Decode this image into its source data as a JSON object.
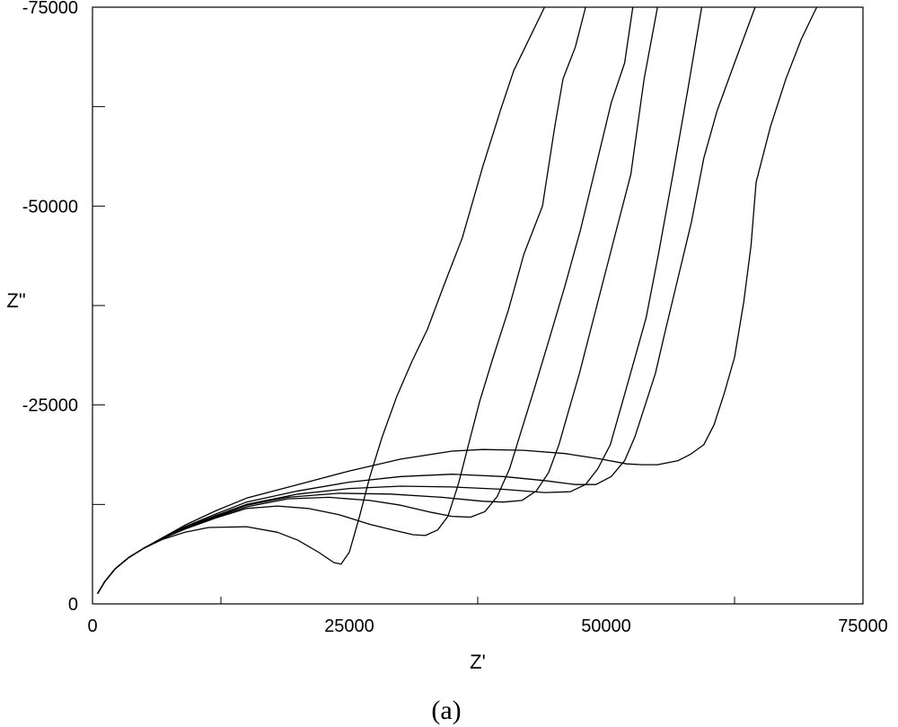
{
  "chart_data": {
    "type": "line",
    "title": "",
    "xlabel": "Z'",
    "ylabel": "Z\"",
    "xlim": [
      0,
      75000
    ],
    "ylim": [
      0,
      -75000
    ],
    "y_axis_inverted": true,
    "grid": false,
    "x_ticks": [
      "0",
      "25000",
      "50000",
      "75000"
    ],
    "y_ticks": [
      "0",
      "-25000",
      "-50000",
      "-75000"
    ],
    "caption": "(a)",
    "line_color": "#000000",
    "series": [
      {
        "points": [
          [
            500,
            -1300
          ],
          [
            1200,
            -2800
          ],
          [
            2200,
            -4400
          ],
          [
            3500,
            -5800
          ],
          [
            5000,
            -7000
          ],
          [
            6800,
            -8100
          ],
          [
            9000,
            -9000
          ],
          [
            11300,
            -9600
          ],
          [
            15000,
            -9700
          ],
          [
            18000,
            -9000
          ],
          [
            20000,
            -8000
          ],
          [
            22000,
            -6500
          ],
          [
            23500,
            -5200
          ],
          [
            24200,
            -5000
          ],
          [
            25000,
            -6500
          ],
          [
            26000,
            -11000
          ],
          [
            27000,
            -16000
          ],
          [
            28200,
            -21000
          ],
          [
            29600,
            -26000
          ],
          [
            31100,
            -30500
          ],
          [
            32600,
            -34500
          ],
          [
            34200,
            -40000
          ],
          [
            36000,
            -46000
          ],
          [
            38000,
            -55000
          ],
          [
            39700,
            -62000
          ],
          [
            41000,
            -67000
          ],
          [
            44000,
            -75000
          ]
        ]
      },
      {
        "points": [
          [
            500,
            -1300
          ],
          [
            1200,
            -2800
          ],
          [
            2200,
            -4400
          ],
          [
            3500,
            -5800
          ],
          [
            5000,
            -7000
          ],
          [
            6800,
            -8200
          ],
          [
            9000,
            -9400
          ],
          [
            12000,
            -10800
          ],
          [
            15000,
            -12000
          ],
          [
            18000,
            -12300
          ],
          [
            21000,
            -12000
          ],
          [
            24000,
            -11200
          ],
          [
            27000,
            -10000
          ],
          [
            29500,
            -9200
          ],
          [
            31200,
            -8700
          ],
          [
            32400,
            -8600
          ],
          [
            33600,
            -9300
          ],
          [
            34600,
            -11000
          ],
          [
            35600,
            -15000
          ],
          [
            36600,
            -20000
          ],
          [
            37700,
            -25500
          ],
          [
            39000,
            -31000
          ],
          [
            40500,
            -37000
          ],
          [
            42000,
            -44000
          ],
          [
            43800,
            -50000
          ],
          [
            45000,
            -60000
          ],
          [
            45800,
            -66000
          ],
          [
            47000,
            -70000
          ],
          [
            48000,
            -75000
          ]
        ]
      },
      {
        "points": [
          [
            500,
            -1300
          ],
          [
            1200,
            -2800
          ],
          [
            2200,
            -4400
          ],
          [
            3500,
            -5800
          ],
          [
            5000,
            -7000
          ],
          [
            6800,
            -8200
          ],
          [
            9000,
            -9500
          ],
          [
            12000,
            -10900
          ],
          [
            15000,
            -12200
          ],
          [
            19000,
            -13200
          ],
          [
            23000,
            -13400
          ],
          [
            27000,
            -13000
          ],
          [
            30000,
            -12400
          ],
          [
            33000,
            -11500
          ],
          [
            35000,
            -11000
          ],
          [
            36800,
            -10900
          ],
          [
            38200,
            -11600
          ],
          [
            39400,
            -13500
          ],
          [
            40600,
            -17000
          ],
          [
            41800,
            -22000
          ],
          [
            43000,
            -27000
          ],
          [
            44400,
            -33000
          ],
          [
            46000,
            -40000
          ],
          [
            47500,
            -47000
          ],
          [
            49000,
            -55000
          ],
          [
            50500,
            -63000
          ],
          [
            51800,
            -68000
          ],
          [
            52600,
            -75000
          ]
        ]
      },
      {
        "points": [
          [
            500,
            -1300
          ],
          [
            1200,
            -2800
          ],
          [
            2200,
            -4400
          ],
          [
            3500,
            -5800
          ],
          [
            5000,
            -7000
          ],
          [
            6800,
            -8200
          ],
          [
            9000,
            -9600
          ],
          [
            12000,
            -11000
          ],
          [
            15000,
            -12400
          ],
          [
            19000,
            -13400
          ],
          [
            24000,
            -13900
          ],
          [
            29000,
            -13800
          ],
          [
            34000,
            -13400
          ],
          [
            38000,
            -12900
          ],
          [
            40000,
            -12800
          ],
          [
            41800,
            -13000
          ],
          [
            43200,
            -14200
          ],
          [
            44400,
            -16500
          ],
          [
            45400,
            -20000
          ],
          [
            46400,
            -24500
          ],
          [
            47400,
            -29000
          ],
          [
            48400,
            -34000
          ],
          [
            49600,
            -40000
          ],
          [
            51000,
            -47000
          ],
          [
            52400,
            -54000
          ],
          [
            53700,
            -66000
          ],
          [
            55000,
            -75000
          ]
        ]
      },
      {
        "points": [
          [
            500,
            -1300
          ],
          [
            1200,
            -2800
          ],
          [
            2200,
            -4400
          ],
          [
            3500,
            -5800
          ],
          [
            5000,
            -7000
          ],
          [
            6800,
            -8200
          ],
          [
            9000,
            -9600
          ],
          [
            12000,
            -11100
          ],
          [
            15000,
            -12500
          ],
          [
            20000,
            -13800
          ],
          [
            25000,
            -14500
          ],
          [
            30000,
            -14800
          ],
          [
            35000,
            -14700
          ],
          [
            40000,
            -14400
          ],
          [
            44000,
            -14000
          ],
          [
            46500,
            -14100
          ],
          [
            48000,
            -15000
          ],
          [
            49200,
            -17000
          ],
          [
            50400,
            -20000
          ],
          [
            51500,
            -25000
          ],
          [
            52600,
            -30000
          ],
          [
            53900,
            -36000
          ],
          [
            55100,
            -44000
          ],
          [
            56500,
            -54000
          ],
          [
            58000,
            -65000
          ],
          [
            59300,
            -75000
          ]
        ]
      },
      {
        "points": [
          [
            500,
            -1300
          ],
          [
            1200,
            -2800
          ],
          [
            2200,
            -4400
          ],
          [
            3500,
            -5800
          ],
          [
            5000,
            -7000
          ],
          [
            6800,
            -8200
          ],
          [
            9000,
            -9700
          ],
          [
            12000,
            -11300
          ],
          [
            15000,
            -12800
          ],
          [
            20000,
            -14200
          ],
          [
            25000,
            -15300
          ],
          [
            30000,
            -16000
          ],
          [
            35000,
            -16300
          ],
          [
            40000,
            -16000
          ],
          [
            44000,
            -15500
          ],
          [
            47000,
            -15000
          ],
          [
            49000,
            -15000
          ],
          [
            50500,
            -16000
          ],
          [
            51800,
            -18000
          ],
          [
            52800,
            -21000
          ],
          [
            53800,
            -25000
          ],
          [
            54800,
            -29000
          ],
          [
            55700,
            -34000
          ],
          [
            57000,
            -41000
          ],
          [
            58300,
            -48000
          ],
          [
            59500,
            -56000
          ],
          [
            60800,
            -62000
          ],
          [
            62500,
            -68000
          ],
          [
            64500,
            -75000
          ]
        ]
      },
      {
        "points": [
          [
            500,
            -1300
          ],
          [
            1200,
            -2800
          ],
          [
            2200,
            -4400
          ],
          [
            3500,
            -5800
          ],
          [
            5000,
            -7000
          ],
          [
            6800,
            -8300
          ],
          [
            9000,
            -9900
          ],
          [
            12000,
            -11700
          ],
          [
            15000,
            -13300
          ],
          [
            20000,
            -15000
          ],
          [
            25000,
            -16700
          ],
          [
            30000,
            -18200
          ],
          [
            35000,
            -19200
          ],
          [
            38000,
            -19400
          ],
          [
            42000,
            -19300
          ],
          [
            46000,
            -18900
          ],
          [
            49500,
            -18200
          ],
          [
            52000,
            -17600
          ],
          [
            53500,
            -17500
          ],
          [
            55000,
            -17500
          ],
          [
            57000,
            -18000
          ],
          [
            58200,
            -18800
          ],
          [
            59500,
            -20000
          ],
          [
            60500,
            -22500
          ],
          [
            61500,
            -26500
          ],
          [
            62500,
            -31000
          ],
          [
            63400,
            -38000
          ],
          [
            64100,
            -45000
          ],
          [
            64600,
            -53000
          ],
          [
            66000,
            -60000
          ],
          [
            67500,
            -66000
          ],
          [
            69000,
            -71000
          ],
          [
            70500,
            -75000
          ]
        ]
      }
    ]
  }
}
